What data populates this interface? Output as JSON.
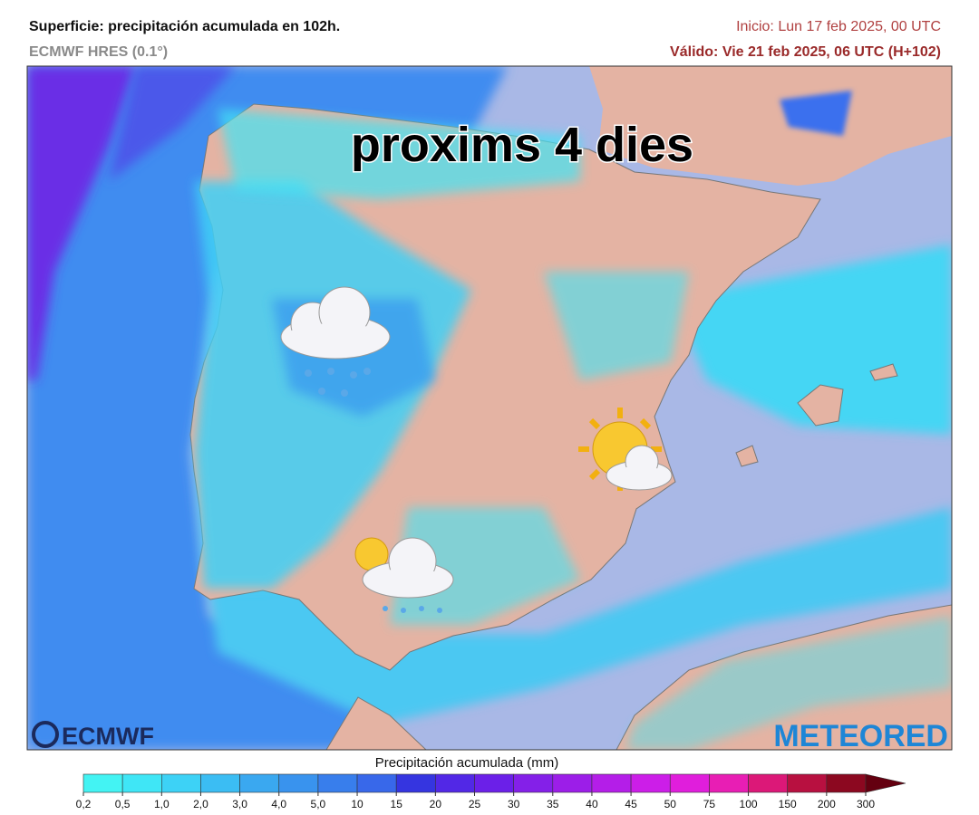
{
  "header": {
    "title": "Superficie: precipitación acumulada en 102h.",
    "model": "ECMWF HRES (0.1°)",
    "init": "Inicio: Lun 17 feb 2025, 00 UTC",
    "valid": "Válido: Vie 21 feb 2025, 06 UTC (H+102)"
  },
  "map": {
    "overlay_text": "proxims 4 dies",
    "logo_left": "ECMWF",
    "logo_right": "METEORED"
  },
  "legend": {
    "title": "Precipitación acumulada (mm)",
    "labels": [
      "0,2",
      "0,5",
      "1,0",
      "2,0",
      "3,0",
      "4,0",
      "5,0",
      "10",
      "15",
      "20",
      "25",
      "30",
      "35",
      "40",
      "45",
      "50",
      "75",
      "100",
      "150",
      "200",
      "300"
    ],
    "colors": [
      "#43f3f3",
      "#3fe6f6",
      "#3dd2f6",
      "#3bbdf3",
      "#3aa8f0",
      "#3993ee",
      "#387eec",
      "#3868ea",
      "#3535e0",
      "#5228e6",
      "#6b20e8",
      "#8420e8",
      "#9c1ee8",
      "#b41ee8",
      "#cc1ee8",
      "#e01edc",
      "#e81eb4",
      "#dc1878",
      "#b81040",
      "#8c0820",
      "#640010"
    ]
  }
}
